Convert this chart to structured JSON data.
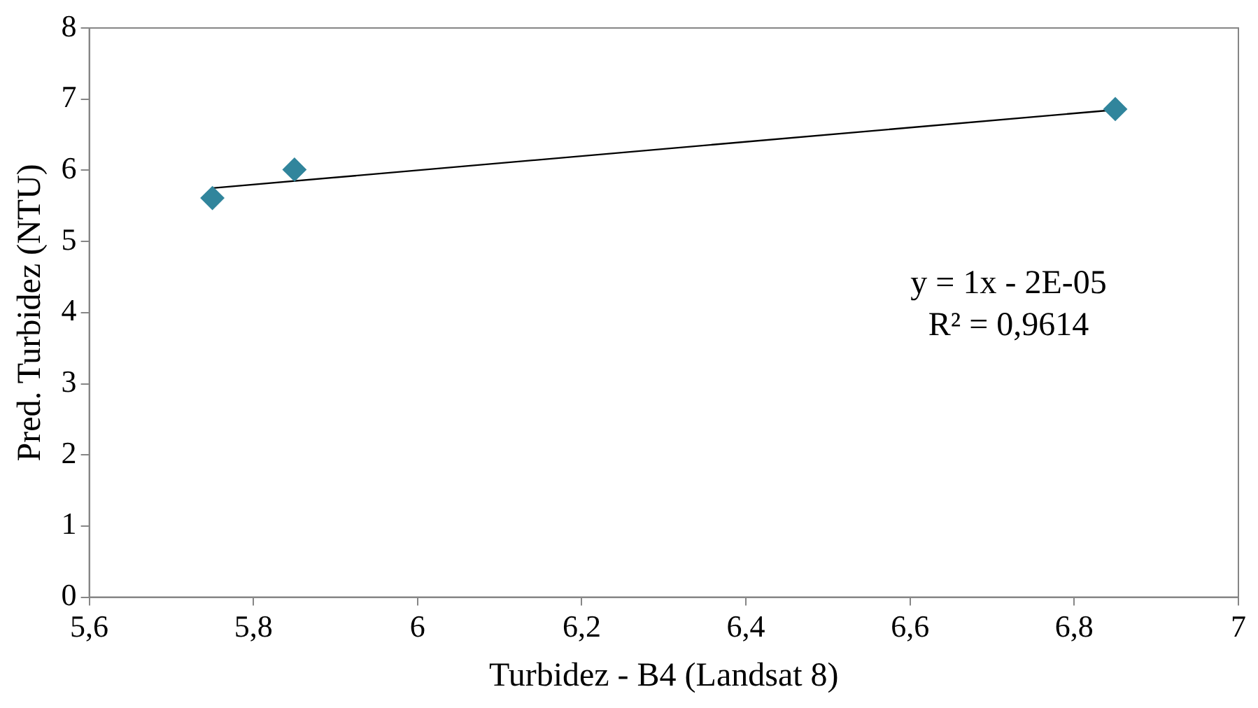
{
  "chart_data": {
    "type": "scatter",
    "xlabel": "Turbidez - B4 (Landsat 8)",
    "ylabel": "Pred. Turbidez (NTU)",
    "x": [
      5.75,
      5.85,
      6.85
    ],
    "series": [
      {
        "type": "scatter",
        "color": "#31859c",
        "values": [
          5.61,
          6.01,
          6.86
        ],
        "marker": "diamond"
      },
      {
        "type": "line",
        "color": "#000000",
        "x": [
          5.75,
          6.85
        ],
        "values": [
          5.75,
          6.85
        ],
        "marker": "none"
      }
    ],
    "xlim": [
      5.6,
      7
    ],
    "xticks": [
      {
        "value": 5.6,
        "label": "5,6"
      },
      {
        "value": 5.8,
        "label": "5,8"
      },
      6,
      {
        "value": 6.2,
        "label": "6,2"
      },
      {
        "value": 6.4,
        "label": "6,4"
      },
      {
        "value": 6.6,
        "label": "6,6"
      },
      {
        "value": 6.8,
        "label": "6,8"
      },
      7
    ],
    "ylim": [
      0,
      8
    ],
    "yticks": [
      0,
      1,
      2,
      3,
      4,
      5,
      6,
      7,
      8
    ],
    "annotations": [
      "y = 1x - 2E-05",
      "R² = 0,9614"
    ],
    "grid": false,
    "legend": false
  }
}
